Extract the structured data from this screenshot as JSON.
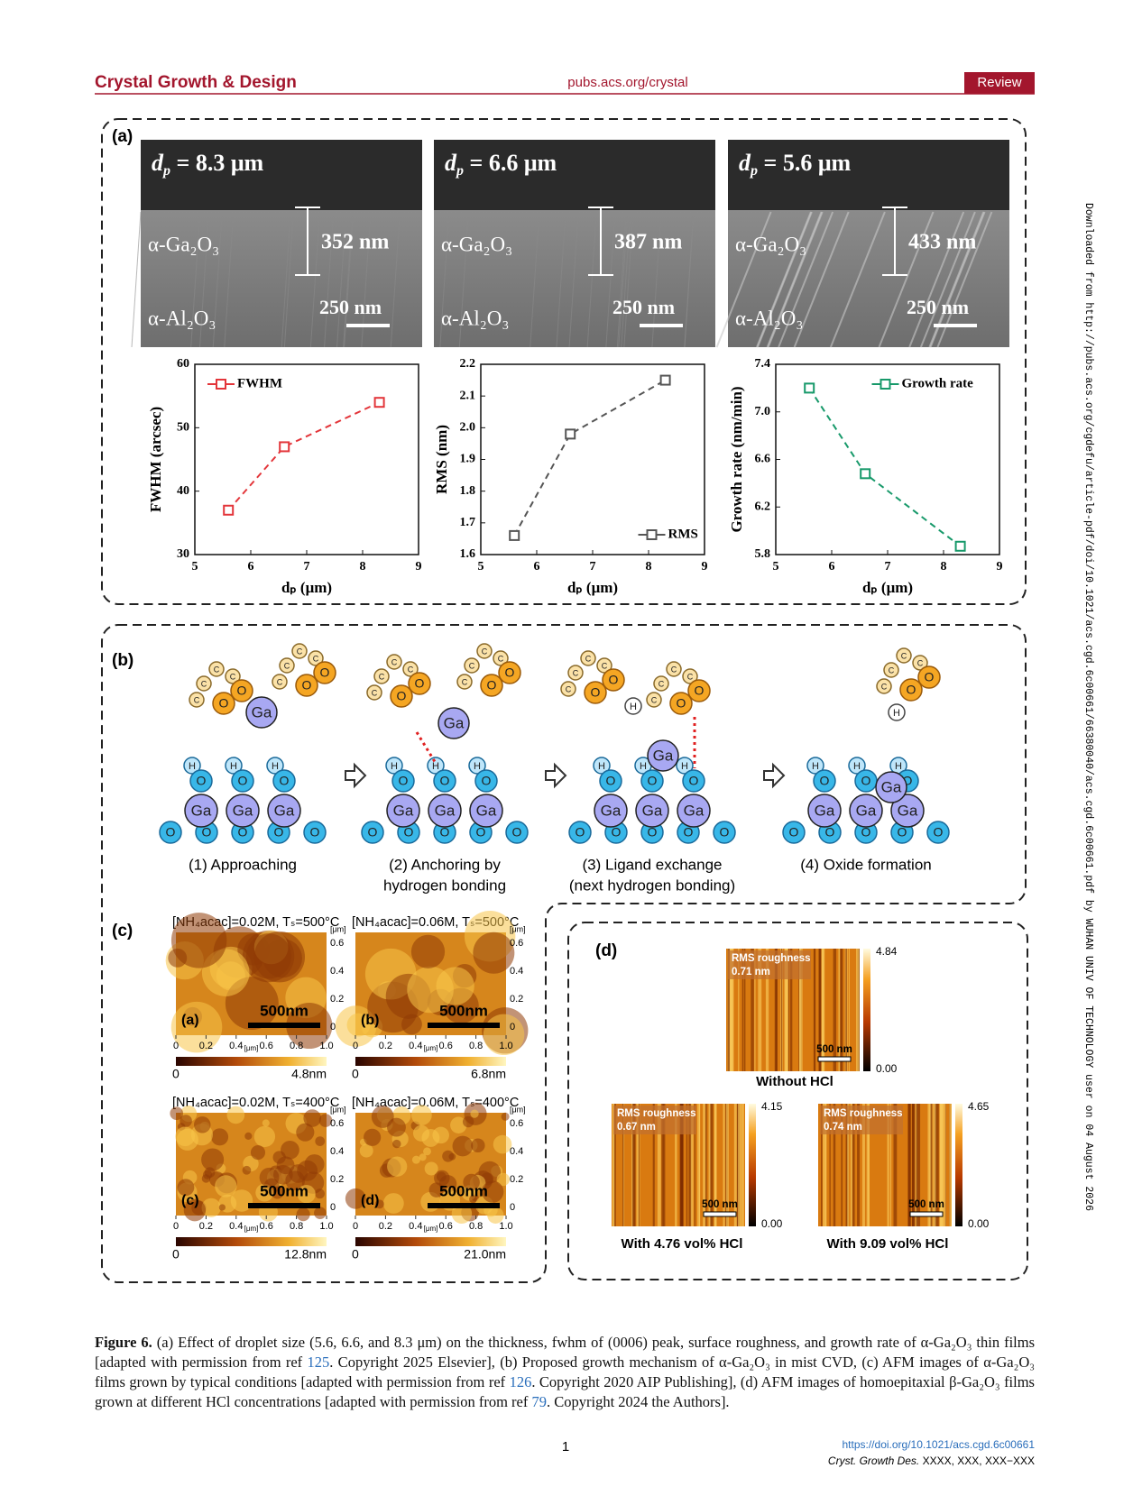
{
  "header": {
    "journal": "Crystal Growth & Design",
    "url": "pubs.acs.org/crystal",
    "section": "Review"
  },
  "side_note": "Downloaded from http://pubs.acs.org/cgdefu/article-pdf/doi/10.1021/acs.cgd.6c00661/66380040/acs.cgd.6c00661.pdf by WUHAN UNIV OF TECHNOLOGY user on 04 August 2026",
  "figure": {
    "panel_a": {
      "label": "(a)",
      "sem": [
        {
          "dp_symbol": "d",
          "dp_sub": "p",
          "dp_value": " = 8.3 μm",
          "film": "α-Ga₂O₃",
          "thickness": "352 nm",
          "substrate": "α-Al₂O₃",
          "scale": "250 nm"
        },
        {
          "dp_symbol": "d",
          "dp_sub": "p",
          "dp_value": " = 6.6 μm",
          "film": "α-Ga₂O₃",
          "thickness": "387 nm",
          "substrate": "α-Al₂O₃",
          "scale": "250 nm"
        },
        {
          "dp_symbol": "d",
          "dp_sub": "p",
          "dp_value": " = 5.6 μm",
          "film": "α-Ga₂O₃",
          "thickness": "433 nm",
          "substrate": "α-Al₂O₃",
          "scale": "250 nm"
        }
      ],
      "charts": [
        {
          "type": "line",
          "y_label": "FWHM (arcsec)",
          "x_label": "dₚ (μm)",
          "legend": "FWHM",
          "legend_position": "upper left",
          "color": "#e3353a",
          "xlim": [
            5,
            9
          ],
          "xticks": [
            5,
            6,
            7,
            8,
            9
          ],
          "ylim": [
            30,
            60
          ],
          "yticks": [
            30,
            40,
            50,
            60
          ],
          "x": [
            5.6,
            6.6,
            8.3
          ],
          "y": [
            37,
            47,
            54
          ]
        },
        {
          "type": "line",
          "y_label": "RMS (nm)",
          "x_label": "dₚ (μm)",
          "legend": "RMS",
          "legend_position": "lower right",
          "color": "#555555",
          "xlim": [
            5,
            9
          ],
          "xticks": [
            5,
            6,
            7,
            8,
            9
          ],
          "ylim": [
            1.6,
            2.2
          ],
          "yticks": [
            1.6,
            1.7,
            1.8,
            1.9,
            {
              "value": 2,
              "label": "2.0"
            },
            2.1,
            2.2
          ],
          "x": [
            5.6,
            6.6,
            8.3
          ],
          "y": [
            1.66,
            1.98,
            2.15
          ]
        },
        {
          "type": "line",
          "y_label": "Growth rate (nm/min)",
          "x_label": "dₚ (μm)",
          "legend": "Growth rate",
          "legend_position": "upper right",
          "color": "#17996a",
          "xlim": [
            5,
            9
          ],
          "xticks": [
            5,
            6,
            7,
            8,
            9
          ],
          "ylim": [
            5.8,
            7.4
          ],
          "yticks": [
            5.8,
            6.2,
            6.6,
            {
              "value": 7,
              "label": "7.0"
            },
            7.4
          ],
          "x": [
            5.6,
            6.6,
            8.3
          ],
          "y": [
            7.2,
            6.48,
            5.87
          ]
        }
      ]
    },
    "panel_b": {
      "label": "(b)",
      "atoms": {
        "ga": "Ga",
        "o": "O",
        "h": "H",
        "c": "C"
      },
      "steps": [
        [
          "(1) Approaching"
        ],
        [
          "(2) Anchoring by",
          "hydrogen bonding"
        ],
        [
          "(3) Ligand exchange",
          "(next hydrogen bonding)"
        ],
        [
          "(4) Oxide formation"
        ]
      ]
    },
    "panel_c": {
      "label": "(c)",
      "axis_unit": "[μm]",
      "x_ticks": [
        "0",
        "0.2",
        "0.4",
        "0.6",
        "0.8",
        "1.0"
      ],
      "y_ticks": [
        "0.6",
        "0.4",
        "0.2",
        "0"
      ],
      "colorbar_min": "0",
      "images": [
        {
          "title": "[NH₄acac]=0.02M, Tₛ=500°C",
          "tag": "(a)",
          "scale": "500nm",
          "colorbar_max": "4.8nm"
        },
        {
          "title": "[NH₄acac]=0.06M, Tₛ=500°C",
          "tag": "(b)",
          "scale": "500nm",
          "colorbar_max": "6.8nm"
        },
        {
          "title": "[NH₄acac]=0.02M, Tₛ=400°C",
          "tag": "(c)",
          "scale": "500nm",
          "colorbar_max": "12.8nm"
        },
        {
          "title": "[NH₄acac]=0.06M, Tₛ=400°C",
          "tag": "(d)",
          "scale": "500nm",
          "colorbar_max": "21.0nm"
        }
      ]
    },
    "panel_d": {
      "label": "(d)",
      "roughness_label": "RMS roughness",
      "scale": "500 nm",
      "colorbar_min": "0.00",
      "images": [
        {
          "rms": "0.71 nm",
          "colorbar_max": "4.84",
          "caption": "Without HCl"
        },
        {
          "rms": "0.67 nm",
          "colorbar_max": "4.15",
          "caption": "With 4.76 vol% HCl"
        },
        {
          "rms": "0.74 nm",
          "colorbar_max": "4.65",
          "caption": "With 9.09 vol% HCl"
        }
      ]
    }
  },
  "caption": {
    "label": "Figure 6.",
    "parts": [
      "(a) Effect of droplet size (5.6, 6.6, and 8.3 μm) on the thickness, fwhm of (0006) peak, surface roughness, and growth rate of α-Ga₂O₃ thin films [adapted with permission from ref ",
      "125",
      ". Copyright 2025 Elsevier], (b) Proposed growth mechanism of α-Ga₂O₃ in mist CVD, (c) AFM images of α-Ga₂O₃ films grown by typical conditions [adapted with permission from ref ",
      "126",
      ". Copyright 2020 AIP Publishing], (d) AFM images of homoepitaxial β-Ga₂O₃ films grown at different HCl concentrations [adapted with permission from ref ",
      "79",
      ". Copyright 2024 the Authors]."
    ]
  },
  "footer": {
    "page": "1",
    "doi": "https://doi.org/10.1021/acs.cgd.6c00661",
    "citation_journal": "Cryst. Growth Des.",
    "citation_rest": " XXXX, XXX, XXX−XXX"
  }
}
